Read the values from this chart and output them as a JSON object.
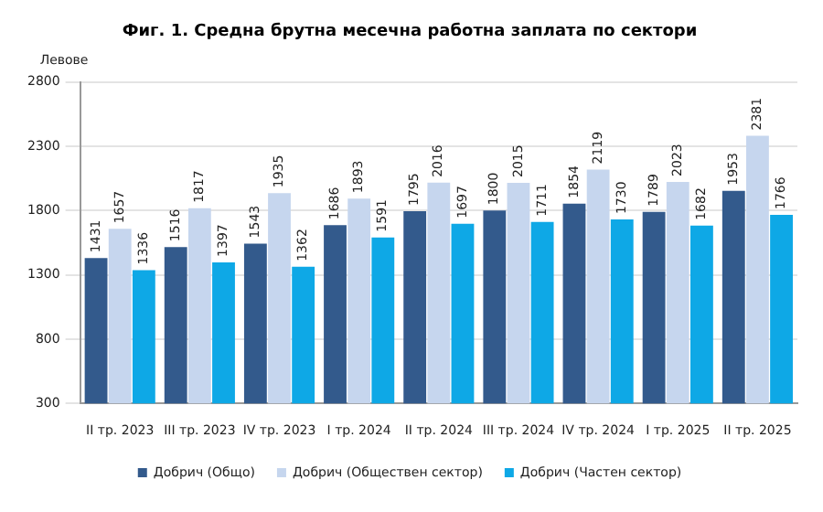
{
  "chart_data": {
    "type": "bar",
    "title": "Фиг. 1. Средна брутна месечна работна заплата по сектори",
    "ylabel": "Левове",
    "categories": [
      "II тр. 2023",
      "III тр. 2023",
      "IV тр. 2023",
      "I тр. 2024",
      "II тр. 2024",
      "III тр. 2024",
      "IV тр. 2024",
      "I тр. 2025",
      "II тр. 2025"
    ],
    "series": [
      {
        "name": "Добрич (Общо)",
        "color": "#335a8c",
        "values": [
          1431,
          1516,
          1543,
          1686,
          1795,
          1800,
          1854,
          1789,
          1953
        ]
      },
      {
        "name": "Добрич (Обществен сектор)",
        "color": "#c6d6ee",
        "values": [
          1657,
          1817,
          1935,
          1893,
          2016,
          2015,
          2119,
          2023,
          2381
        ]
      },
      {
        "name": "Добрич (Частен сектор)",
        "color": "#0ea8e6",
        "values": [
          1336,
          1397,
          1362,
          1591,
          1697,
          1711,
          1730,
          1682,
          1766
        ]
      }
    ],
    "ylim": [
      300,
      2800
    ],
    "yticks": [
      300,
      800,
      1300,
      1800,
      2300,
      2800
    ],
    "grid": "y",
    "legend": "bottom",
    "data_labels": true
  }
}
